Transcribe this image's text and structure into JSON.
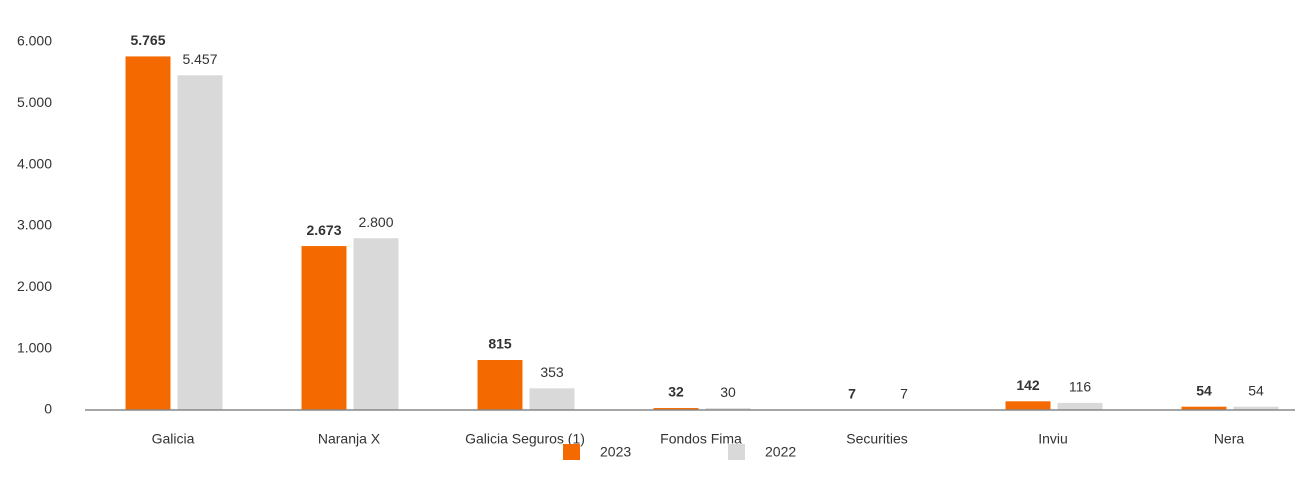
{
  "chart_data": {
    "type": "bar",
    "categories": [
      "Galicia",
      "Naranja X",
      "Galicia Seguros (1)",
      "Fondos Fima",
      "Securities",
      "Inviu",
      "Nera"
    ],
    "series": [
      {
        "name": "2023",
        "color": "#f56a00",
        "values": [
          5765,
          2673,
          815,
          32,
          7,
          142,
          54
        ],
        "value_labels": [
          "5.765",
          "2.673",
          "815",
          "32",
          "7",
          "142",
          "54"
        ]
      },
      {
        "name": "2022",
        "color": "#d9d9d9",
        "values": [
          5457,
          2800,
          353,
          30,
          7,
          116,
          54
        ],
        "value_labels": [
          "5.457",
          "2.800",
          "353",
          "30",
          "7",
          "116",
          "54"
        ]
      }
    ],
    "ylim": [
      0,
      6000
    ],
    "yticks": [
      0,
      {
        "value": 1000,
        "label": "1.000"
      },
      {
        "value": 2000,
        "label": "2.000"
      },
      {
        "value": 3000,
        "label": "3.000"
      },
      {
        "value": 4000,
        "label": "4.000"
      },
      {
        "value": 5000,
        "label": "5.000"
      },
      {
        "value": 6000,
        "label": "6.000"
      }
    ],
    "grid": false,
    "legend": "bottom"
  }
}
